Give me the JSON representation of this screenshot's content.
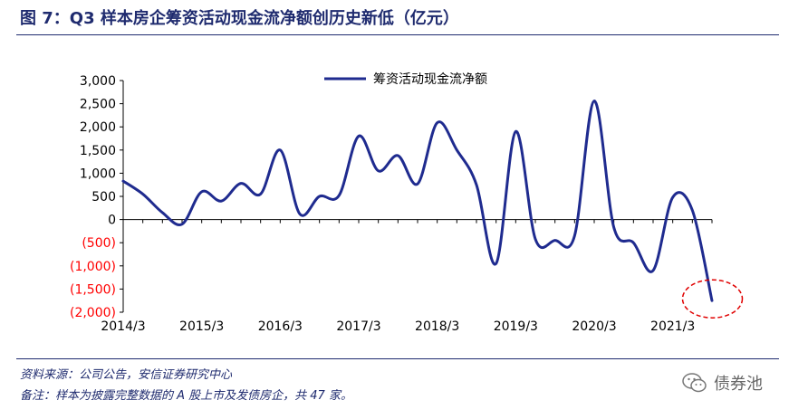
{
  "figure": {
    "title": "图 7：Q3 样本房企筹资活动现金流净额创历史新低（亿元）"
  },
  "notes": {
    "source": "资料来源：公司公告，安信证券研究中心",
    "remark": "备注：样本为披露完整数据的 A 股上市及发债房企，共 47 家。"
  },
  "brand": {
    "name": "债券池",
    "icon": "wechat-icon"
  },
  "colors": {
    "line": "#1f2b8f",
    "title": "#1f2b6f",
    "negative_label": "#ff0000",
    "highlight": "#e00000"
  },
  "chart_data": {
    "type": "line",
    "title": "",
    "xlabel": "",
    "ylabel": "",
    "ylim": [
      -2000,
      3000
    ],
    "yticks": [
      {
        "value": 3000,
        "label": "3,000"
      },
      {
        "value": 2500,
        "label": "2,500"
      },
      {
        "value": 2000,
        "label": "2,000"
      },
      {
        "value": 1500,
        "label": "1,500"
      },
      {
        "value": 1000,
        "label": "1,000"
      },
      {
        "value": 500,
        "label": "500"
      },
      {
        "value": 0,
        "label": "0"
      },
      {
        "value": -500,
        "label": "(500)"
      },
      {
        "value": -1000,
        "label": "(1,000)"
      },
      {
        "value": -1500,
        "label": "(1,500)"
      },
      {
        "value": -2000,
        "label": "(2,000)"
      }
    ],
    "x_period_count": 31,
    "xticks": [
      {
        "index": 0,
        "label": "2014/3"
      },
      {
        "index": 4,
        "label": "2015/3"
      },
      {
        "index": 8,
        "label": "2016/3"
      },
      {
        "index": 12,
        "label": "2017/3"
      },
      {
        "index": 16,
        "label": "2018/3"
      },
      {
        "index": 20,
        "label": "2019/3"
      },
      {
        "index": 24,
        "label": "2020/3"
      },
      {
        "index": 28,
        "label": "2021/3"
      }
    ],
    "legend": {
      "position": "top"
    },
    "grid": false,
    "series": [
      {
        "name": "筹资活动现金流净额",
        "values": [
          830,
          550,
          150,
          -100,
          600,
          400,
          780,
          550,
          1500,
          120,
          500,
          520,
          1800,
          1050,
          1380,
          770,
          2090,
          1500,
          750,
          -950,
          1900,
          -420,
          -450,
          -350,
          2560,
          -170,
          -500,
          -1100,
          480,
          200,
          -1750
        ]
      }
    ],
    "annotation": {
      "type": "ellipse",
      "point_index": 30
    }
  }
}
